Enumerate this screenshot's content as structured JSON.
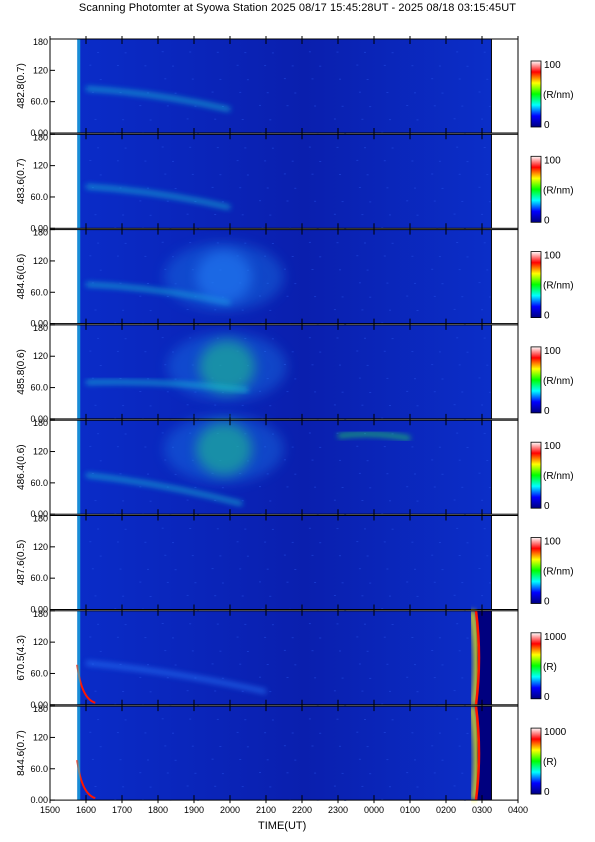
{
  "chart_data": {
    "type": "heatmap",
    "title": "Scanning Photomter at Syowa Station  2025 08/17 15:45:28UT - 2025 08/18 03:15:45UT",
    "xlabel": "TIME(UT)",
    "x_ticks": [
      "1500",
      "1600",
      "1700",
      "1800",
      "1900",
      "2000",
      "2100",
      "2200",
      "2300",
      "0000",
      "0100",
      "0200",
      "0300",
      "0400"
    ],
    "y_ticks": [
      "0.00",
      "60.0",
      "120",
      "180"
    ],
    "ylim": [
      0,
      180
    ],
    "data_start_ut": "15:45:28",
    "data_end_ut": "03:15:45",
    "colormap": [
      "#00007f",
      "#0000ff",
      "#00ffff",
      "#00ff00",
      "#ffff00",
      "#ff0000",
      "#ffffff"
    ],
    "panels": [
      {
        "ylabel": "482.8(0.7)",
        "unit": "(R/nm)",
        "cmax": "100",
        "cmin": "0",
        "features": [
          {
            "type": "arc",
            "from": [
              "16:00",
              85
            ],
            "to": [
              "20:00",
              45
            ],
            "level": 0.35
          }
        ]
      },
      {
        "ylabel": "483.6(0.7)",
        "unit": "(R/nm)",
        "cmax": "100",
        "cmin": "0",
        "features": [
          {
            "type": "arc",
            "from": [
              "16:00",
              80
            ],
            "to": [
              "20:00",
              40
            ],
            "level": 0.32
          }
        ]
      },
      {
        "ylabel": "484.6(0.6)",
        "unit": "(R/nm)",
        "cmax": "100",
        "cmin": "0",
        "features": [
          {
            "type": "arc",
            "from": [
              "16:00",
              75
            ],
            "to": [
              "20:00",
              40
            ],
            "level": 0.33
          },
          {
            "type": "patch",
            "center": [
              "19:50",
              90
            ],
            "level": 0.3
          }
        ]
      },
      {
        "ylabel": "485.8(0.6)",
        "unit": "(R/nm)",
        "cmax": "100",
        "cmin": "0",
        "features": [
          {
            "type": "patch",
            "center": [
              "19:55",
              100
            ],
            "level": 0.55
          },
          {
            "type": "arc",
            "from": [
              "16:00",
              70
            ],
            "to": [
              "20:30",
              55
            ],
            "level": 0.4
          }
        ]
      },
      {
        "ylabel": "486.4(0.6)",
        "unit": "(R/nm)",
        "cmax": "100",
        "cmin": "0",
        "features": [
          {
            "type": "patch",
            "center": [
              "19:50",
              125
            ],
            "level": 0.6
          },
          {
            "type": "band",
            "from": [
              "23:00",
              150
            ],
            "to": [
              "01:00",
              145
            ],
            "level": 0.55
          },
          {
            "type": "arc",
            "from": [
              "16:00",
              75
            ],
            "to": [
              "20:20",
              20
            ],
            "level": 0.4
          }
        ]
      },
      {
        "ylabel": "487.6(0.5)",
        "unit": "(R/nm)",
        "cmax": "100",
        "cmin": "0",
        "features": []
      },
      {
        "ylabel": "670.5(4.3)",
        "unit": "(R)",
        "cmax": "1000",
        "cmin": "0",
        "features": [
          {
            "type": "arc",
            "from": [
              "16:00",
              80
            ],
            "to": [
              "21:00",
              25
            ],
            "level": 0.25
          },
          {
            "type": "twilight_edge",
            "time": "02:50",
            "level": 1.0
          }
        ]
      },
      {
        "ylabel": "844.6(0.7)",
        "unit": "(R)",
        "cmax": "1000",
        "cmin": "0",
        "features": [
          {
            "type": "twilight_edge",
            "time": "02:50",
            "level": 1.0
          }
        ]
      }
    ]
  }
}
